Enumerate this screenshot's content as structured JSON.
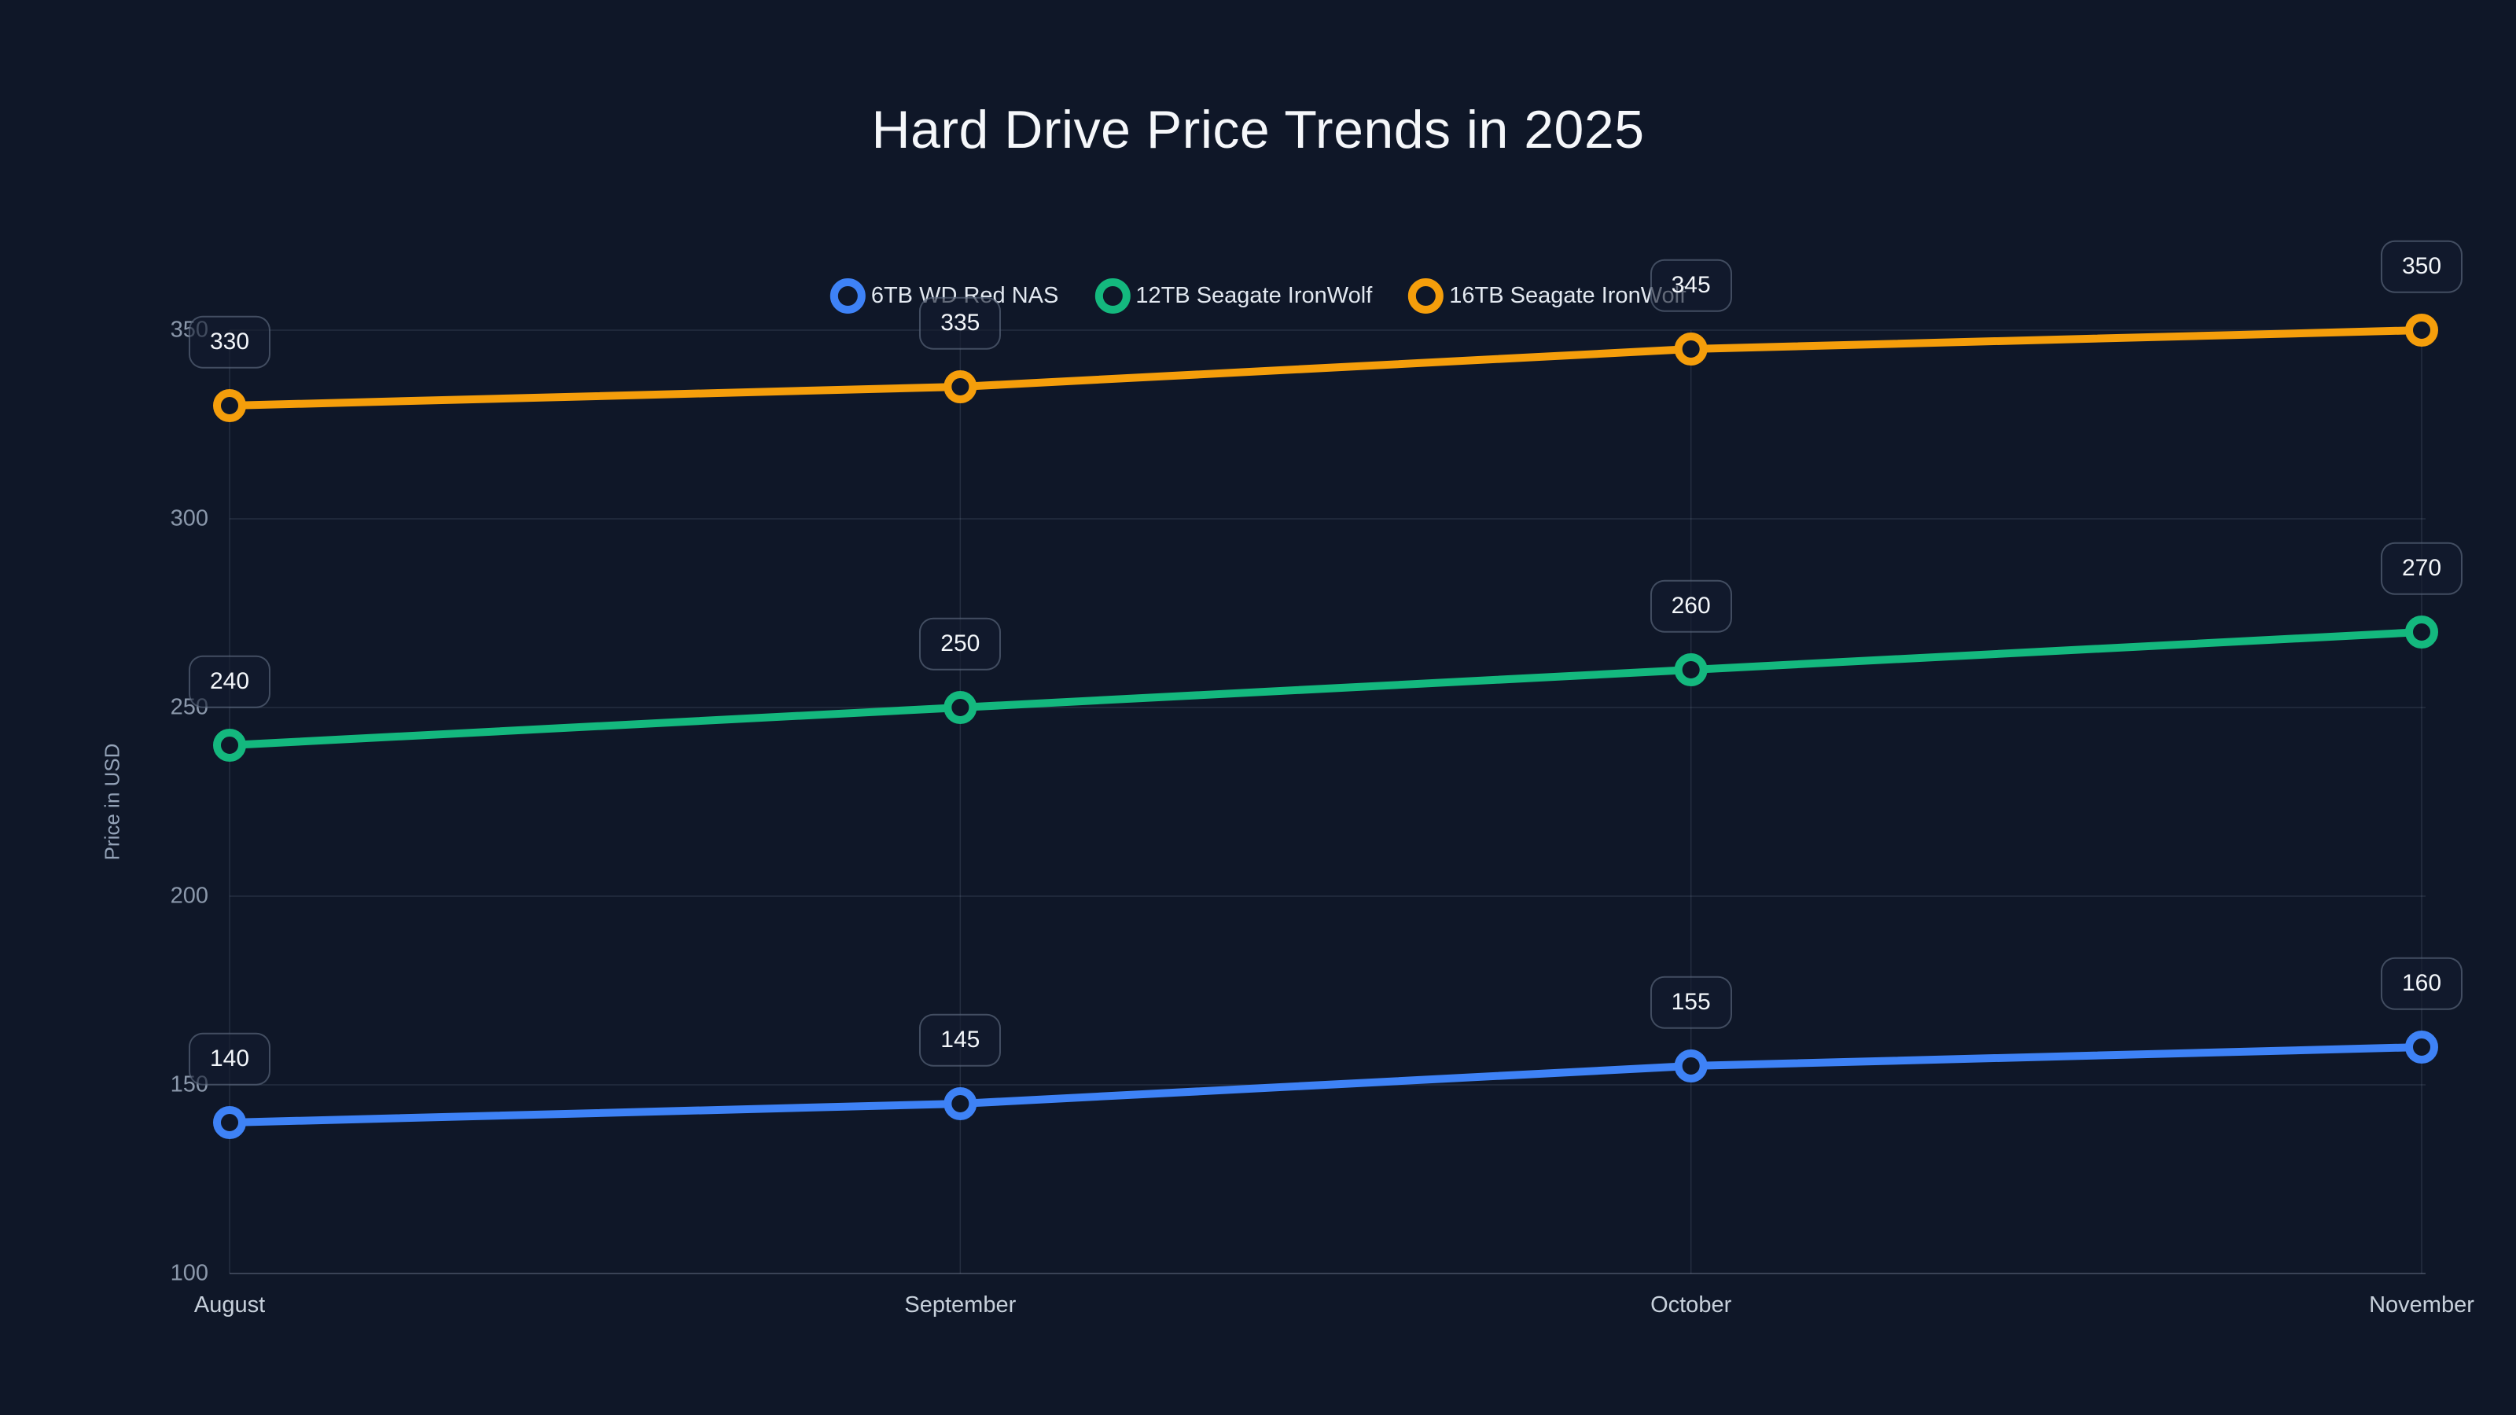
{
  "title": "Hard Drive Price Trends in 2025",
  "chart_data": {
    "type": "line",
    "categories": [
      "August",
      "September",
      "October",
      "November"
    ],
    "series": [
      {
        "name": "6TB WD Red NAS",
        "color": "#3e82f6",
        "values": [
          140,
          145,
          155,
          160
        ]
      },
      {
        "name": "12TB Seagate IronWolf",
        "color": "#14b87e",
        "values": [
          240,
          250,
          260,
          270
        ]
      },
      {
        "name": "16TB Seagate IronWolf",
        "color": "#f59e0b",
        "values": [
          330,
          335,
          345,
          350
        ]
      }
    ],
    "xlabel": "",
    "ylabel": "Price in USD",
    "yticks": [
      100,
      150,
      200,
      250,
      300,
      350
    ],
    "ylim": [
      100,
      350
    ],
    "grid": true,
    "legend_position": "top",
    "point_labels": true
  },
  "colors": {
    "background": "#0f1728",
    "grid": "rgba(148,163,184,0.17)",
    "axis_line": "rgba(148,163,184,0.32)",
    "title_text": "#f5f7fa",
    "legend_text": "#e2e8f0",
    "ytick_text": "#8b98ab",
    "xtick_text": "#c7d0db",
    "axis_title_text": "#94a3b8",
    "badge_text": "#f3f6fa"
  }
}
